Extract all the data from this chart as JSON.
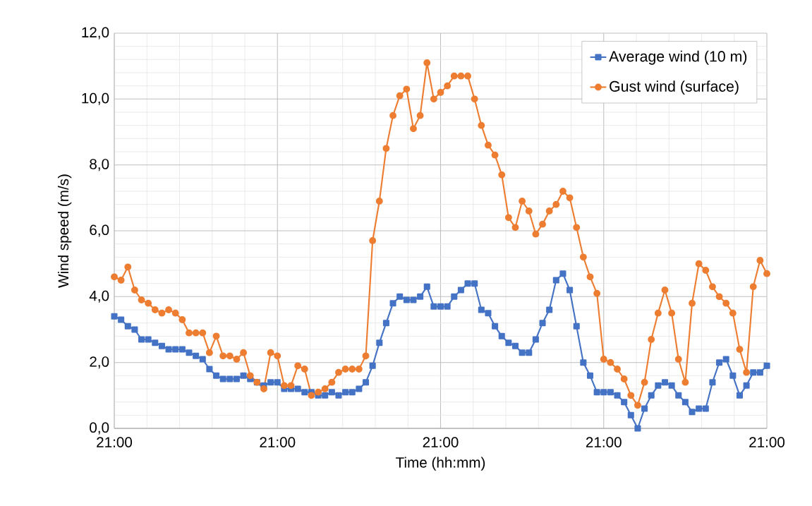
{
  "chart_data": {
    "type": "line",
    "xlabel": "Time (hh:mm)",
    "ylabel": "Wind speed (m/s)",
    "categories": [
      "21:00",
      null,
      null,
      null,
      null,
      null,
      null,
      null,
      null,
      null,
      null,
      null,
      null,
      null,
      null,
      null,
      null,
      null,
      null,
      null,
      null,
      null,
      null,
      null,
      "21:00",
      null,
      null,
      null,
      null,
      null,
      null,
      null,
      null,
      null,
      null,
      null,
      null,
      null,
      null,
      null,
      null,
      null,
      null,
      null,
      null,
      null,
      null,
      null,
      "21:00",
      null,
      null,
      null,
      null,
      null,
      null,
      null,
      null,
      null,
      null,
      null,
      null,
      null,
      null,
      null,
      null,
      null,
      null,
      null,
      null,
      null,
      null,
      null,
      "21:00",
      null,
      null,
      null,
      null,
      null,
      null,
      null,
      null,
      null,
      null,
      null,
      null,
      null,
      null,
      null,
      null,
      null,
      null,
      null,
      null,
      null,
      null,
      null,
      "21:00"
    ],
    "series": [
      {
        "name": "Average wind (10 m)",
        "color": "#4472c4",
        "marker": "square",
        "values": [
          3.4,
          3.3,
          3.1,
          3.0,
          2.7,
          2.7,
          2.6,
          2.5,
          2.4,
          2.4,
          2.4,
          2.3,
          2.2,
          2.1,
          1.8,
          1.6,
          1.5,
          1.5,
          1.5,
          1.6,
          1.5,
          1.4,
          1.3,
          1.4,
          1.4,
          1.2,
          1.2,
          1.2,
          1.1,
          1.1,
          1.0,
          1.0,
          1.1,
          1.0,
          1.1,
          1.1,
          1.2,
          1.4,
          1.9,
          2.6,
          3.2,
          3.8,
          4.0,
          3.9,
          3.9,
          4.0,
          4.3,
          3.7,
          3.7,
          3.7,
          4.0,
          4.2,
          4.4,
          4.4,
          3.6,
          3.5,
          3.1,
          2.8,
          2.6,
          2.5,
          2.3,
          2.3,
          2.7,
          3.2,
          3.6,
          4.5,
          4.7,
          4.2,
          3.1,
          2.0,
          1.6,
          1.1,
          1.1,
          1.1,
          1.0,
          0.8,
          0.4,
          0.0,
          0.6,
          1.0,
          1.3,
          1.4,
          1.3,
          1.0,
          0.8,
          0.5,
          0.6,
          0.6,
          1.4,
          2.0,
          2.1,
          1.6,
          1.0,
          1.3,
          1.7,
          1.7,
          1.9
        ]
      },
      {
        "name": "Gust wind (surface)",
        "color": "#ed7d31",
        "marker": "circle",
        "values": [
          4.6,
          4.5,
          4.9,
          4.2,
          3.9,
          3.8,
          3.6,
          3.5,
          3.6,
          3.5,
          3.3,
          2.9,
          2.9,
          2.9,
          2.3,
          2.8,
          2.2,
          2.2,
          2.1,
          2.3,
          1.6,
          1.4,
          1.2,
          2.3,
          2.2,
          1.3,
          1.3,
          1.9,
          1.8,
          1.0,
          1.1,
          1.2,
          1.4,
          1.7,
          1.8,
          1.8,
          1.8,
          2.2,
          5.7,
          6.9,
          8.5,
          9.5,
          10.1,
          10.3,
          9.1,
          9.5,
          11.1,
          10.0,
          10.2,
          10.4,
          10.7,
          10.7,
          10.7,
          10.0,
          9.2,
          8.6,
          8.3,
          7.7,
          6.4,
          6.1,
          6.9,
          6.6,
          5.9,
          6.2,
          6.6,
          6.8,
          7.2,
          7.0,
          6.1,
          5.2,
          4.6,
          4.1,
          2.1,
          2.0,
          1.8,
          1.5,
          1.0,
          0.7,
          1.4,
          2.7,
          3.5,
          4.2,
          3.5,
          2.1,
          1.4,
          3.8,
          5.0,
          4.8,
          4.3,
          4.0,
          3.8,
          3.5,
          2.4,
          1.7,
          4.3,
          5.1,
          4.7
        ]
      }
    ],
    "ylim": [
      0,
      12
    ],
    "yticks": [
      {
        "value": 0,
        "label": "0,0"
      },
      {
        "value": 2,
        "label": "2,0"
      },
      {
        "value": 4,
        "label": "4,0"
      },
      {
        "value": 6,
        "label": "6,0"
      },
      {
        "value": 8,
        "label": "8,0"
      },
      {
        "value": 10,
        "label": "10,0"
      },
      {
        "value": 12,
        "label": "12,0"
      }
    ],
    "grid": true,
    "legend": "top right",
    "line_style": "solid"
  }
}
